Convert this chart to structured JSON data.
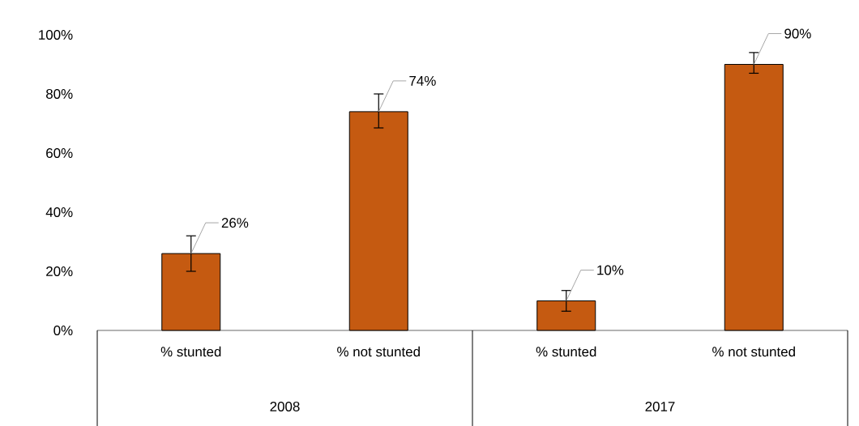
{
  "chart_data": {
    "type": "bar",
    "categories": [
      "% stunted",
      "% not stunted",
      "% stunted",
      "% not stunted"
    ],
    "values": [
      26,
      74,
      10,
      90
    ],
    "color": "#c55a11",
    "errors": [
      [
        20,
        32
      ],
      [
        68.5,
        80
      ],
      [
        6.5,
        13.5
      ],
      [
        87,
        94
      ]
    ],
    "value_labels": [
      "26%",
      "74%",
      "10%",
      "90%"
    ],
    "ylim": [
      0,
      100
    ],
    "yticks": [
      {
        "value": 0,
        "label": "0%"
      },
      {
        "value": 20,
        "label": "20%"
      },
      {
        "value": 40,
        "label": "40%"
      },
      {
        "value": 60,
        "label": "60%"
      },
      {
        "value": 80,
        "label": "80%"
      },
      {
        "value": 100,
        "label": "100%"
      }
    ],
    "annotations": [
      "2008",
      "2017"
    ]
  }
}
